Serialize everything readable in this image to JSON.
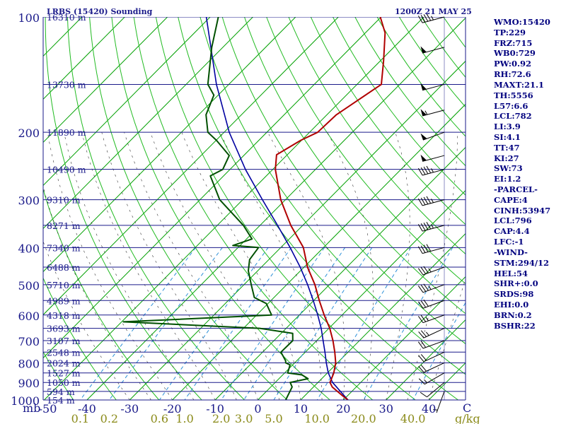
{
  "title_left": "LRBS (15420) Sounding",
  "title_right": "1200Z 21 MAY 25",
  "indices": [
    "WMO:15420",
    "TP:229",
    "FRZ:715",
    "WB0:729",
    "PW:0.92",
    "RH:72.6",
    "MAXT:21.1",
    "TH:5556",
    "L57:6.6",
    "LCL:782",
    "LI:3.9",
    "SI:4.1",
    "TT:47",
    "KI:27",
    "SW:73",
    "EI:1.2",
    "-PARCEL-",
    "CAPE:4",
    "CINH:53947",
    "LCL:796",
    "CAP:4.4",
    "LFC:-1",
    "-WIND-",
    "STM:294/12",
    "HEL:54",
    "SHR+:0.0",
    "SRDS:98",
    "EHI:0.0",
    "BRN:0.2",
    "BSHR:22"
  ],
  "colors": {
    "frame": "#1a1a8a",
    "isobar": "#1a1a8a",
    "isotherm": "#00a000",
    "dry_adiabat": "#22bb22",
    "moist_adiabat": "#333333",
    "mixing_ratio": "#2b8fd8",
    "temperature": "#b00000",
    "dewpoint": "#005000",
    "parcel": "#0000a0",
    "olive_text": "#8b8b1a",
    "index_text": "#00007f"
  },
  "chart_data": {
    "type": "skew-t",
    "ylabel": "mb",
    "xlabel": "C",
    "mixing_ratio_unit": "g/kg",
    "pressure_ticks": [
      100,
      200,
      300,
      400,
      500,
      600,
      700,
      800,
      900,
      1000
    ],
    "temperature_ticks": [
      "-50",
      "-40",
      "-30",
      "-20",
      "-10",
      "0",
      "10",
      "20",
      "30",
      "40"
    ],
    "mixing_ratio_ticks": [
      "0.1",
      "0.2",
      "0.6",
      "1.0",
      "2.0",
      "3.0",
      "5.0",
      "10.0",
      "20.0",
      "40.0"
    ],
    "mixing_ratio_values": [
      0.1,
      0.2,
      0.6,
      1.0,
      2.0,
      3.0,
      5.0,
      10.0,
      20.0,
      40.0
    ],
    "height_levels": [
      {
        "p": 100,
        "label": "16310 m"
      },
      {
        "p": 150,
        "label": "13730 m"
      },
      {
        "p": 200,
        "label": "11890 m"
      },
      {
        "p": 250,
        "label": "10490 m"
      },
      {
        "p": 300,
        "label": "9310 m"
      },
      {
        "p": 350,
        "label": "8271 m"
      },
      {
        "p": 400,
        "label": "7340 m"
      },
      {
        "p": 450,
        "label": "6488 m"
      },
      {
        "p": 500,
        "label": "5710 m"
      },
      {
        "p": 550,
        "label": "4989 m"
      },
      {
        "p": 600,
        "label": "4318 m"
      },
      {
        "p": 650,
        "label": "3693 m"
      },
      {
        "p": 700,
        "label": "3107 m"
      },
      {
        "p": 750,
        "label": "2548 m"
      },
      {
        "p": 800,
        "label": "2024 m"
      },
      {
        "p": 850,
        "label": "1527 m"
      },
      {
        "p": 900,
        "label": "1050 m"
      },
      {
        "p": 950,
        "label": "594 m"
      },
      {
        "p": 1000,
        "label": "154 m"
      }
    ],
    "temperature_profile": [
      [
        1000,
        21.1
      ],
      [
        970,
        18.4
      ],
      [
        925,
        14.4
      ],
      [
        900,
        12.8
      ],
      [
        850,
        11.5
      ],
      [
        800,
        9.6
      ],
      [
        750,
        6.9
      ],
      [
        700,
        3.8
      ],
      [
        650,
        0.2
      ],
      [
        600,
        -4.2
      ],
      [
        550,
        -8.7
      ],
      [
        500,
        -13.4
      ],
      [
        450,
        -19.2
      ],
      [
        400,
        -24.7
      ],
      [
        350,
        -32.8
      ],
      [
        300,
        -41.1
      ],
      [
        250,
        -49.4
      ],
      [
        229,
        -52.5
      ],
      [
        210,
        -50.2
      ],
      [
        200,
        -48.1
      ],
      [
        180,
        -47.8
      ],
      [
        150,
        -44.3
      ],
      [
        130,
        -49.3
      ],
      [
        110,
        -55.4
      ],
      [
        100,
        -60.2
      ]
    ],
    "dewpoint_profile": [
      [
        1000,
        6.5
      ],
      [
        925,
        5.0
      ],
      [
        900,
        3.5
      ],
      [
        880,
        6.8
      ],
      [
        860,
        4.5
      ],
      [
        850,
        0.7
      ],
      [
        810,
        -0.6
      ],
      [
        800,
        -2.1
      ],
      [
        790,
        -2.6
      ],
      [
        750,
        -5.7
      ],
      [
        700,
        -5.6
      ],
      [
        670,
        -7.3
      ],
      [
        650,
        -16.2
      ],
      [
        625,
        -49.6
      ],
      [
        600,
        -16.5
      ],
      [
        560,
        -20.4
      ],
      [
        540,
        -24.6
      ],
      [
        500,
        -28.3
      ],
      [
        460,
        -32.2
      ],
      [
        430,
        -34.5
      ],
      [
        400,
        -35.2
      ],
      [
        395,
        -41.7
      ],
      [
        380,
        -38.7
      ],
      [
        350,
        -43.9
      ],
      [
        300,
        -55.4
      ],
      [
        260,
        -63.1
      ],
      [
        250,
        -61.7
      ],
      [
        230,
        -63.4
      ],
      [
        210,
        -69.9
      ],
      [
        200,
        -73.8
      ],
      [
        180,
        -78.3
      ],
      [
        160,
        -81.0
      ],
      [
        150,
        -84.9
      ],
      [
        120,
        -92.6
      ],
      [
        100,
        -98.1
      ]
    ],
    "parcel_profile": [
      [
        1000,
        21.1
      ],
      [
        900,
        13.4
      ],
      [
        850,
        10.2
      ],
      [
        800,
        7.4
      ],
      [
        750,
        4.6
      ],
      [
        700,
        1.5
      ],
      [
        650,
        -1.8
      ],
      [
        600,
        -5.7
      ],
      [
        550,
        -10.1
      ],
      [
        500,
        -15.1
      ],
      [
        450,
        -20.9
      ],
      [
        400,
        -27.8
      ],
      [
        350,
        -35.9
      ],
      [
        300,
        -45.4
      ],
      [
        250,
        -56.4
      ],
      [
        200,
        -68.8
      ],
      [
        150,
        -82.9
      ],
      [
        100,
        -100.9
      ]
    ],
    "wind_barbs": [
      {
        "p": 100,
        "dir": 255,
        "spd": 45
      },
      {
        "p": 120,
        "dir": 255,
        "spd": 50
      },
      {
        "p": 150,
        "dir": 255,
        "spd": 50
      },
      {
        "p": 175,
        "dir": 255,
        "spd": 55
      },
      {
        "p": 200,
        "dir": 250,
        "spd": 50
      },
      {
        "p": 230,
        "dir": 255,
        "spd": 50
      },
      {
        "p": 250,
        "dir": 255,
        "spd": 45
      },
      {
        "p": 300,
        "dir": 255,
        "spd": 45
      },
      {
        "p": 350,
        "dir": 255,
        "spd": 45
      },
      {
        "p": 400,
        "dir": 255,
        "spd": 40
      },
      {
        "p": 450,
        "dir": 250,
        "spd": 35
      },
      {
        "p": 500,
        "dir": 250,
        "spd": 35
      },
      {
        "p": 550,
        "dir": 250,
        "spd": 30
      },
      {
        "p": 600,
        "dir": 250,
        "spd": 25
      },
      {
        "p": 650,
        "dir": 245,
        "spd": 25
      },
      {
        "p": 700,
        "dir": 250,
        "spd": 20
      },
      {
        "p": 750,
        "dir": 245,
        "spd": 20
      },
      {
        "p": 800,
        "dir": 245,
        "spd": 20
      },
      {
        "p": 850,
        "dir": 240,
        "spd": 15
      },
      {
        "p": 900,
        "dir": 230,
        "spd": 10
      },
      {
        "p": 950,
        "dir": 200,
        "spd": 5
      }
    ]
  }
}
